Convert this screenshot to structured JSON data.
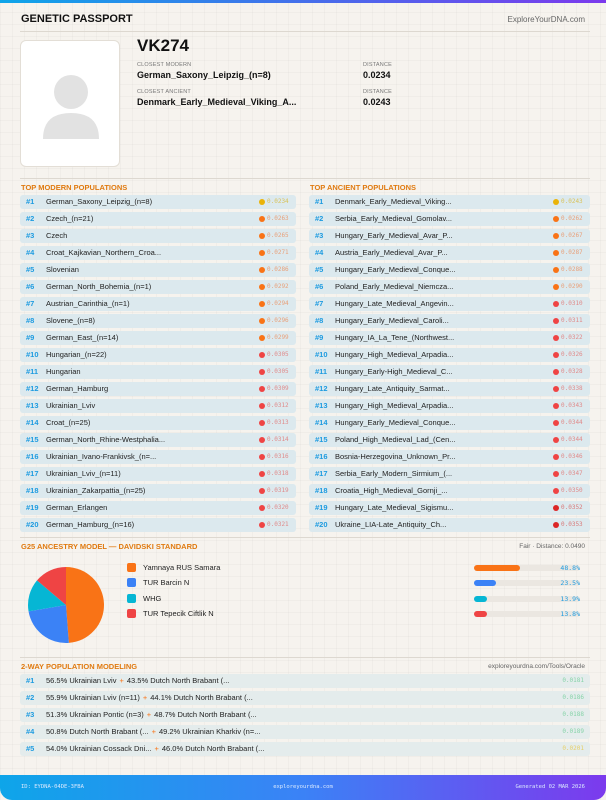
{
  "header": {
    "title": "GENETIC PASSPORT",
    "site": "ExploreYourDNA.com"
  },
  "profile": {
    "name": "VK274",
    "closest_modern_label": "CLOSEST MODERN",
    "closest_modern": "German_Saxony_Leipzig_(n=8)",
    "distance_label": "DISTANCE",
    "closest_modern_distance": "0.0234",
    "closest_ancient_label": "CLOSEST ANCIENT",
    "closest_ancient": "Denmark_Early_Medieval_Viking_A...",
    "closest_ancient_distance": "0.0243",
    "avatar_icon": "user-silhouette-icon"
  },
  "colors": {
    "yellow": "#eab308",
    "orange": "#f97316",
    "red": "#ef4444",
    "darkred": "#dc2626",
    "accent": "#e07a10",
    "rank": "#1d9be0"
  },
  "modern": {
    "title": "TOP MODERN POPULATIONS",
    "rows": [
      {
        "rank": "#1",
        "name": "German_Saxony_Leipzig_(n=8)",
        "distance": "0.0234",
        "level": "yellow"
      },
      {
        "rank": "#2",
        "name": "Czech_(n=21)",
        "distance": "0.0263",
        "level": "orange"
      },
      {
        "rank": "#3",
        "name": "Czech",
        "distance": "0.0265",
        "level": "orange"
      },
      {
        "rank": "#4",
        "name": "Croat_Kajkavian_Northern_Croa...",
        "distance": "0.0271",
        "level": "orange"
      },
      {
        "rank": "#5",
        "name": "Slovenian",
        "distance": "0.0286",
        "level": "orange"
      },
      {
        "rank": "#6",
        "name": "German_North_Bohemia_(n=1)",
        "distance": "0.0292",
        "level": "orange"
      },
      {
        "rank": "#7",
        "name": "Austrian_Carinthia_(n=1)",
        "distance": "0.0294",
        "level": "orange"
      },
      {
        "rank": "#8",
        "name": "Slovene_(n=8)",
        "distance": "0.0296",
        "level": "orange"
      },
      {
        "rank": "#9",
        "name": "German_East_(n=14)",
        "distance": "0.0299",
        "level": "orange"
      },
      {
        "rank": "#10",
        "name": "Hungarian_(n=22)",
        "distance": "0.0305",
        "level": "red"
      },
      {
        "rank": "#11",
        "name": "Hungarian",
        "distance": "0.0305",
        "level": "red"
      },
      {
        "rank": "#12",
        "name": "German_Hamburg",
        "distance": "0.0309",
        "level": "red"
      },
      {
        "rank": "#13",
        "name": "Ukrainian_Lviv",
        "distance": "0.0312",
        "level": "red"
      },
      {
        "rank": "#14",
        "name": "Croat_(n=25)",
        "distance": "0.0313",
        "level": "red"
      },
      {
        "rank": "#15",
        "name": "German_North_Rhine-Westphalia...",
        "distance": "0.0314",
        "level": "red"
      },
      {
        "rank": "#16",
        "name": "Ukrainian_Ivano-Frankivsk_(n=...",
        "distance": "0.0316",
        "level": "red"
      },
      {
        "rank": "#17",
        "name": "Ukrainian_Lviv_(n=11)",
        "distance": "0.0318",
        "level": "red"
      },
      {
        "rank": "#18",
        "name": "Ukrainian_Zakarpattia_(n=25)",
        "distance": "0.0319",
        "level": "red"
      },
      {
        "rank": "#19",
        "name": "German_Erlangen",
        "distance": "0.0320",
        "level": "red"
      },
      {
        "rank": "#20",
        "name": "German_Hamburg_(n=16)",
        "distance": "0.0321",
        "level": "red"
      }
    ]
  },
  "ancient": {
    "title": "TOP ANCIENT POPULATIONS",
    "rows": [
      {
        "rank": "#1",
        "name": "Denmark_Early_Medieval_Viking...",
        "distance": "0.0243",
        "level": "yellow"
      },
      {
        "rank": "#2",
        "name": "Serbia_Early_Medieval_Gomolav...",
        "distance": "0.0262",
        "level": "orange"
      },
      {
        "rank": "#3",
        "name": "Hungary_Early_Medieval_Avar_P...",
        "distance": "0.0267",
        "level": "orange"
      },
      {
        "rank": "#4",
        "name": "Austria_Early_Medieval_Avar_P...",
        "distance": "0.0287",
        "level": "orange"
      },
      {
        "rank": "#5",
        "name": "Hungary_Early_Medieval_Conque...",
        "distance": "0.0288",
        "level": "orange"
      },
      {
        "rank": "#6",
        "name": "Poland_Early_Medieval_Niemcza...",
        "distance": "0.0290",
        "level": "orange"
      },
      {
        "rank": "#7",
        "name": "Hungary_Late_Medieval_Angevin...",
        "distance": "0.0310",
        "level": "red"
      },
      {
        "rank": "#8",
        "name": "Hungary_Early_Medieval_Caroli...",
        "distance": "0.0311",
        "level": "red"
      },
      {
        "rank": "#9",
        "name": "Hungary_IA_La_Tene_(Northwest...",
        "distance": "0.0322",
        "level": "red"
      },
      {
        "rank": "#10",
        "name": "Hungary_High_Medieval_Arpadia...",
        "distance": "0.0326",
        "level": "red"
      },
      {
        "rank": "#11",
        "name": "Hungary_Early-High_Medieval_C...",
        "distance": "0.0328",
        "level": "red"
      },
      {
        "rank": "#12",
        "name": "Hungary_Late_Antiquity_Sarmat...",
        "distance": "0.0338",
        "level": "red"
      },
      {
        "rank": "#13",
        "name": "Hungary_High_Medieval_Arpadia...",
        "distance": "0.0343",
        "level": "red"
      },
      {
        "rank": "#14",
        "name": "Hungary_Early_Medieval_Conque...",
        "distance": "0.0344",
        "level": "red"
      },
      {
        "rank": "#15",
        "name": "Poland_High_Medieval_Lad_(Cen...",
        "distance": "0.0344",
        "level": "red"
      },
      {
        "rank": "#16",
        "name": "Bosnia-Herzegovina_Unknown_Pr...",
        "distance": "0.0346",
        "level": "red"
      },
      {
        "rank": "#17",
        "name": "Serbia_Early_Modern_Sirmium_(...",
        "distance": "0.0347",
        "level": "red"
      },
      {
        "rank": "#18",
        "name": "Croatia_High_Medieval_Gornji_...",
        "distance": "0.0350",
        "level": "red"
      },
      {
        "rank": "#19",
        "name": "Hungary_Late_Medieval_Sigismu...",
        "distance": "0.0352",
        "level": "darkred"
      },
      {
        "rank": "#20",
        "name": "Ukraine_LIA-Late_Antiquity_Ch...",
        "distance": "0.0353",
        "level": "darkred"
      }
    ]
  },
  "g25": {
    "title": "G25 ANCESTRY MODEL — DAVIDSKI STANDARD",
    "fit": "Fair · Distance: 0.0490",
    "components": [
      {
        "name": "Yamnaya RUS Samara",
        "percent": 48.8,
        "label": "48.8%",
        "color": "#f97316"
      },
      {
        "name": "TUR Barcin N",
        "percent": 23.5,
        "label": "23.5%",
        "color": "#3b82f6"
      },
      {
        "name": "WHG",
        "percent": 13.9,
        "label": "13.9%",
        "color": "#06b6d4"
      },
      {
        "name": "TUR Tepecik Ciftlik N",
        "percent": 13.8,
        "label": "13.8%",
        "color": "#ef4444"
      }
    ]
  },
  "twoway": {
    "title": "2-WAY POPULATION MODELING",
    "source": "exploreyourdna.com/Tools/Oracle",
    "rows": [
      {
        "rank": "#1",
        "a": "56.5% Ukrainian Lviv",
        "b": "43.5% Dutch North Brabant (...",
        "distance": "0.0181",
        "color": "#86d3a8"
      },
      {
        "rank": "#2",
        "a": "55.9% Ukrainian Lviv (n=11)",
        "b": "44.1% Dutch North Brabant (...",
        "distance": "0.0186",
        "color": "#86d3a8"
      },
      {
        "rank": "#3",
        "a": "51.3% Ukrainian Pontic (n=3)",
        "b": "48.7% Dutch North Brabant (...",
        "distance": "0.0188",
        "color": "#86d3a8"
      },
      {
        "rank": "#4",
        "a": "50.8% Dutch North Brabant (...",
        "b": "49.2% Ukrainian Kharkiv (n=...",
        "distance": "0.0189",
        "color": "#86d3a8"
      },
      {
        "rank": "#5",
        "a": "54.0% Ukrainian Cossack Dni...",
        "b": "46.0% Dutch North Brabant (...",
        "distance": "0.0201",
        "color": "#e6cf6a"
      }
    ]
  },
  "footer": {
    "id": "ID: EYDNA-04DE-3FBA",
    "site": "exploreyourdna.com",
    "generated": "Generated 02 MAR 2026"
  }
}
